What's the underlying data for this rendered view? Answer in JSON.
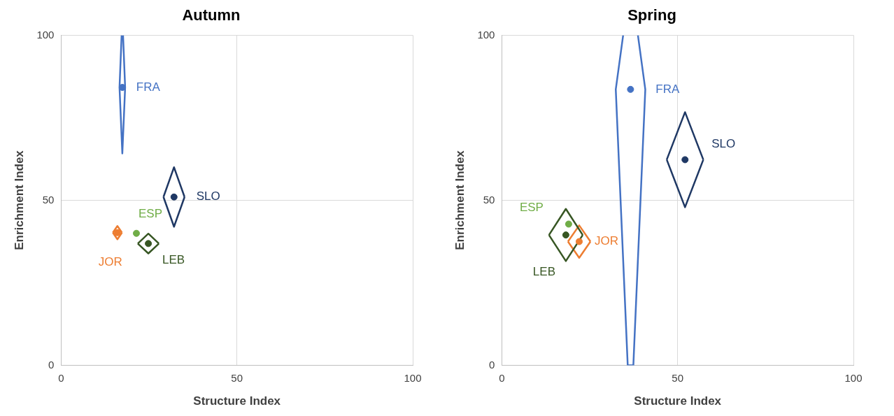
{
  "chart_data": [
    {
      "type": "scatter",
      "title": "Autumn",
      "xlabel": "Structure Index",
      "ylabel": "Enrichment Index",
      "xlim": [
        0,
        100
      ],
      "ylim": [
        0,
        100
      ],
      "xticks": [
        0,
        50,
        100
      ],
      "yticks": [
        0,
        50,
        100
      ],
      "grid": true,
      "legend": false,
      "marker": "circle",
      "series": [
        {
          "name": "FRA",
          "color": "#4472c4",
          "x": [
            17.4
          ],
          "values": [
            84.2
          ]
        },
        {
          "name": "SLO",
          "color": "#1f3864",
          "x": [
            32.1
          ],
          "values": [
            51.0
          ]
        },
        {
          "name": "ESP",
          "color": "#70ad47",
          "x": [
            21.4
          ],
          "values": [
            40.0
          ]
        },
        {
          "name": "LEB",
          "color": "#375623",
          "x": [
            24.8
          ],
          "values": [
            36.9
          ]
        },
        {
          "name": "JOR",
          "color": "#ed7d31",
          "x": [
            16.0
          ],
          "values": [
            40.2
          ]
        },
        {
          "type": "line",
          "marker": "none",
          "color": "#4472c4",
          "x": [
            17.2,
            16.6,
            17.4,
            18.2,
            17.6
          ],
          "values": [
            100,
            84.2,
            64.2,
            84.2,
            100
          ]
        },
        {
          "type": "line",
          "marker": "none",
          "color": "#1f3864",
          "x": [
            29.1,
            32.1,
            35.1
          ],
          "values": [
            51,
            60,
            51
          ]
        },
        {
          "type": "line",
          "marker": "none",
          "color": "#1f3864",
          "x": [
            29.1,
            32.1,
            35.1
          ],
          "values": [
            51,
            42,
            51
          ]
        },
        {
          "type": "line",
          "marker": "none",
          "color": "#375623",
          "x": [
            21.8,
            24.8,
            27.8
          ],
          "values": [
            36.9,
            39.9,
            36.9
          ]
        },
        {
          "type": "line",
          "marker": "none",
          "color": "#375623",
          "x": [
            21.8,
            24.8,
            27.8
          ],
          "values": [
            36.9,
            33.9,
            36.9
          ]
        },
        {
          "type": "line",
          "marker": "none",
          "color": "#ed7d31",
          "x": [
            14.7,
            16,
            17.3
          ],
          "values": [
            40.2,
            42.2,
            40.2
          ]
        },
        {
          "type": "line",
          "marker": "none",
          "color": "#ed7d31",
          "x": [
            14.7,
            16,
            17.3
          ],
          "values": [
            40.2,
            38.2,
            40.2
          ]
        }
      ]
    },
    {
      "type": "scatter",
      "title": "Spring",
      "xlabel": "Structure Index",
      "ylabel": "Enrichment Index",
      "xlim": [
        0,
        100
      ],
      "ylim": [
        0,
        100
      ],
      "xticks": [
        0,
        50,
        100
      ],
      "yticks": [
        0,
        50,
        100
      ],
      "grid": true,
      "legend": false,
      "marker": "circle",
      "series": [
        {
          "name": "FRA",
          "color": "#4472c4",
          "x": [
            36.6
          ],
          "values": [
            83.6
          ]
        },
        {
          "name": "SLO",
          "color": "#1f3864",
          "x": [
            52.1
          ],
          "values": [
            62.3
          ]
        },
        {
          "name": "ESP",
          "color": "#70ad47",
          "x": [
            19.0
          ],
          "values": [
            42.8
          ]
        },
        {
          "name": "LEB",
          "color": "#375623",
          "x": [
            18.2
          ],
          "values": [
            39.5
          ]
        },
        {
          "name": "JOR",
          "color": "#ed7d31",
          "x": [
            22.0
          ],
          "values": [
            37.5
          ]
        },
        {
          "type": "line",
          "marker": "none",
          "color": "#4472c4",
          "x": [
            34.5,
            32.4,
            35.8,
            37.4,
            40.8,
            38.7
          ],
          "values": [
            100,
            83.6,
            0,
            0,
            83.6,
            100
          ]
        },
        {
          "type": "line",
          "marker": "none",
          "color": "#1f3864",
          "x": [
            46.9,
            52.1,
            57.3
          ],
          "values": [
            62.3,
            76.7,
            62.3
          ]
        },
        {
          "type": "line",
          "marker": "none",
          "color": "#1f3864",
          "x": [
            46.9,
            52.1,
            57.3
          ],
          "values": [
            62.3,
            47.9,
            62.3
          ]
        },
        {
          "type": "line",
          "marker": "none",
          "color": "#375623",
          "x": [
            13.4,
            18.2,
            23
          ],
          "values": [
            39.5,
            47.4,
            39.5
          ]
        },
        {
          "type": "line",
          "marker": "none",
          "color": "#375623",
          "x": [
            13.4,
            18.2,
            23
          ],
          "values": [
            39.5,
            31.6,
            39.5
          ]
        },
        {
          "type": "line",
          "marker": "none",
          "color": "#ed7d31",
          "x": [
            18.8,
            22,
            25.2
          ],
          "values": [
            37.5,
            42.4,
            37.5
          ]
        },
        {
          "type": "line",
          "marker": "none",
          "color": "#ed7d31",
          "x": [
            18.8,
            22,
            25.2
          ],
          "values": [
            37.5,
            32.6,
            37.5
          ]
        }
      ]
    }
  ]
}
